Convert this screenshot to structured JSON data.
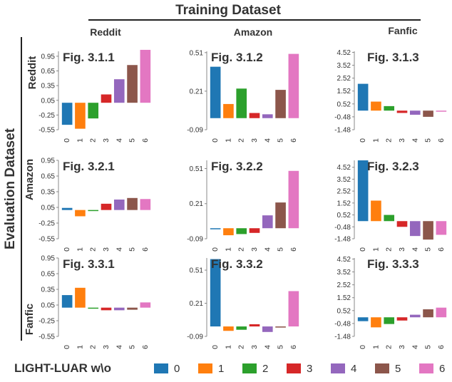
{
  "header": {
    "training_title": "Training Dataset",
    "evaluation_title": "Evaluation Dataset",
    "columns": [
      "Reddit",
      "Amazon",
      "Fanfic"
    ],
    "rows": [
      "Reddit",
      "Amazon",
      "Fanfic"
    ]
  },
  "legend": {
    "title": "LIGHT-LUAR w\\o",
    "entries": [
      {
        "label": "0",
        "color": "#1f77b4"
      },
      {
        "label": "1",
        "color": "#ff7f0e"
      },
      {
        "label": "2",
        "color": "#2ca02c"
      },
      {
        "label": "3",
        "color": "#d62728"
      },
      {
        "label": "4",
        "color": "#9467bd"
      },
      {
        "label": "5",
        "color": "#8c564b"
      },
      {
        "label": "6",
        "color": "#e377c2"
      }
    ]
  },
  "colors": [
    "#1f77b4",
    "#ff7f0e",
    "#2ca02c",
    "#d62728",
    "#9467bd",
    "#8c564b",
    "#e377c2"
  ],
  "chart_data": [
    {
      "type": "bar",
      "title": "Fig. 3.1.1",
      "row": 0,
      "col": 0,
      "categories": [
        "0",
        "1",
        "2",
        "3",
        "4",
        "5",
        "6"
      ],
      "values": [
        -0.45,
        -0.53,
        -0.32,
        0.17,
        0.48,
        0.77,
        1.08
      ],
      "ylim": [
        -0.55,
        1.05
      ],
      "yticks": [
        "-0.55",
        "-0.25",
        "0.05",
        "0.35",
        "0.65",
        "0.95"
      ],
      "ytick_values": [
        -0.55,
        -0.25,
        0.05,
        0.35,
        0.65,
        0.95
      ]
    },
    {
      "type": "bar",
      "title": "Fig. 3.1.2",
      "row": 0,
      "col": 1,
      "categories": [
        "0",
        "1",
        "2",
        "3",
        "4",
        "5",
        "6"
      ],
      "values": [
        0.4,
        0.11,
        0.23,
        0.04,
        0.03,
        0.22,
        0.5
      ],
      "ylim": [
        -0.09,
        0.52
      ],
      "yticks": [
        "-0.09",
        "0.21",
        "0.51"
      ],
      "ytick_values": [
        -0.09,
        0.21,
        0.51
      ]
    },
    {
      "type": "bar",
      "title": "Fig. 3.1.3",
      "row": 0,
      "col": 2,
      "categories": [
        "0",
        "1",
        "2",
        "3",
        "4",
        "5",
        "6"
      ],
      "values": [
        2.08,
        0.7,
        0.35,
        -0.18,
        -0.32,
        -0.48,
        -0.04
      ],
      "ylim": [
        -1.48,
        4.6
      ],
      "yticks": [
        "-1.48",
        "-0.48",
        "0.52",
        "1.52",
        "2.52",
        "3.52",
        "4.52"
      ],
      "ytick_values": [
        -1.48,
        -0.48,
        0.52,
        1.52,
        2.52,
        3.52,
        4.52
      ]
    },
    {
      "type": "bar",
      "title": "Fig. 3.2.1",
      "row": 1,
      "col": 0,
      "categories": [
        "0",
        "1",
        "2",
        "3",
        "4",
        "5",
        "6"
      ],
      "values": [
        0.04,
        -0.12,
        -0.02,
        0.12,
        0.2,
        0.23,
        0.21
      ],
      "ylim": [
        -0.55,
        0.95
      ],
      "yticks": [
        "-0.55",
        "-0.25",
        "0.05",
        "0.35",
        "0.65",
        "0.95"
      ],
      "ytick_values": [
        -0.55,
        -0.25,
        0.05,
        0.35,
        0.65,
        0.95
      ]
    },
    {
      "type": "bar",
      "title": "Fig. 3.2.2",
      "row": 1,
      "col": 1,
      "categories": [
        "0",
        "1",
        "2",
        "3",
        "4",
        "5",
        "6"
      ],
      "values": [
        0.0,
        -0.06,
        -0.05,
        -0.04,
        0.11,
        0.22,
        0.49
      ],
      "ylim": [
        -0.09,
        0.58
      ],
      "yticks": [
        "-0.09",
        "0.21",
        "0.51"
      ],
      "ytick_values": [
        -0.09,
        0.21,
        0.51
      ]
    },
    {
      "type": "bar",
      "title": "Fig. 3.2.3",
      "row": 1,
      "col": 2,
      "categories": [
        "0",
        "1",
        "2",
        "3",
        "4",
        "5",
        "6"
      ],
      "values": [
        5.1,
        1.72,
        0.52,
        -0.48,
        -1.25,
        -1.55,
        -1.15
      ],
      "ylim": [
        -1.48,
        5.1
      ],
      "yticks": [
        "-1.48",
        "-0.48",
        "0.52",
        "1.52",
        "2.52",
        "3.52",
        "4.52"
      ],
      "ytick_values": [
        -1.48,
        -0.48,
        0.52,
        1.52,
        2.52,
        3.52,
        4.52
      ]
    },
    {
      "type": "bar",
      "title": "Fig. 3.3.1",
      "row": 2,
      "col": 0,
      "categories": [
        "0",
        "1",
        "2",
        "3",
        "4",
        "5",
        "6"
      ],
      "values": [
        0.24,
        0.38,
        -0.01,
        -0.05,
        -0.05,
        -0.04,
        0.1
      ],
      "ylim": [
        -0.55,
        0.95
      ],
      "yticks": [
        "-0.55",
        "-0.25",
        "0.05",
        "0.35",
        "0.65",
        "0.95"
      ],
      "ytick_values": [
        -0.55,
        -0.25,
        0.05,
        0.35,
        0.65,
        0.95
      ]
    },
    {
      "type": "bar",
      "title": "Fig. 3.3.2",
      "row": 2,
      "col": 1,
      "categories": [
        "0",
        "1",
        "2",
        "3",
        "4",
        "5",
        "6"
      ],
      "values": [
        0.61,
        -0.04,
        -0.03,
        0.02,
        -0.05,
        -0.01,
        0.32
      ],
      "ylim": [
        -0.09,
        0.62
      ],
      "yticks": [
        "-0.09",
        "0.21",
        "0.51"
      ],
      "ytick_values": [
        -0.09,
        0.21,
        0.51
      ]
    },
    {
      "type": "bar",
      "title": "Fig. 3.3.3",
      "row": 2,
      "col": 2,
      "categories": [
        "0",
        "1",
        "2",
        "3",
        "4",
        "5",
        "6"
      ],
      "values": [
        -0.3,
        -0.78,
        -0.52,
        -0.25,
        0.2,
        0.62,
        0.75
      ],
      "ylim": [
        -1.48,
        4.6
      ],
      "yticks": [
        "-1.48",
        "-0.48",
        "0.52",
        "1.52",
        "2.52",
        "3.52",
        "4.52"
      ],
      "ytick_values": [
        -1.48,
        -0.48,
        0.52,
        1.52,
        2.52,
        3.52,
        4.52
      ]
    }
  ]
}
